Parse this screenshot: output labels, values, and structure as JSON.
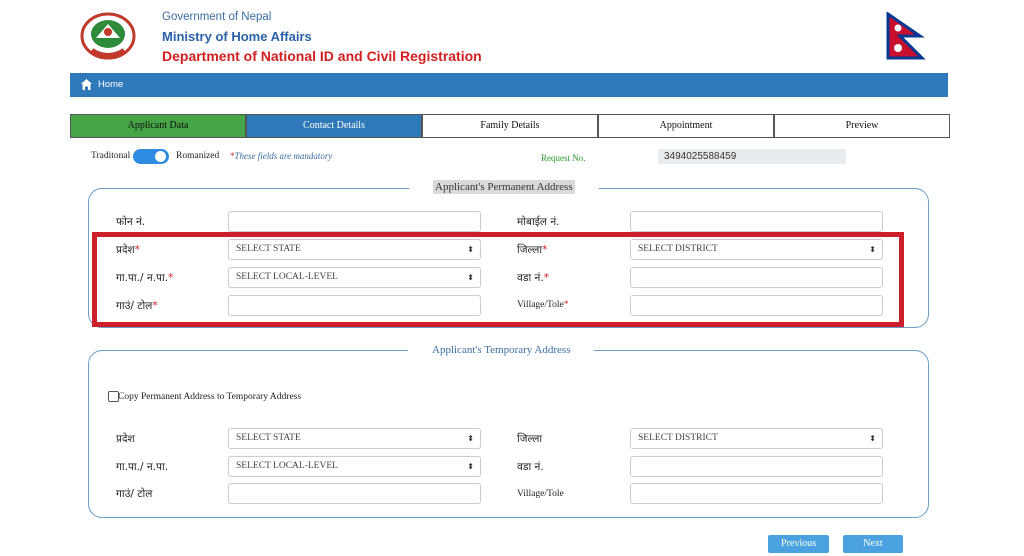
{
  "header": {
    "gov_name": "Government of Nepal",
    "ministry": "Ministry of Home Affairs",
    "department": "Department of National ID and Civil Registration"
  },
  "nav": {
    "home_label": "Home"
  },
  "tabs": [
    {
      "label": "Applicant Data",
      "state": "done"
    },
    {
      "label": "Contact Details",
      "state": "active"
    },
    {
      "label": "Family Details",
      "state": "normal"
    },
    {
      "label": "Appointment",
      "state": "normal"
    },
    {
      "label": "Preview",
      "state": "normal"
    }
  ],
  "toggle": {
    "left_label": "Traditonal",
    "right_label": "Romanized",
    "state": "on"
  },
  "mandatory_note": "These fields are mandatory",
  "request": {
    "label": "Request No.",
    "value": "3494025588459"
  },
  "permanent": {
    "legend": "Applicant's Permanent Address",
    "phone_label": "फोन नं.",
    "mobile_label": "मोबाईल नं.",
    "state_label": "प्रदेश",
    "state_value": "SELECT STATE",
    "district_label": "जिल्ला",
    "district_value": "SELECT DISTRICT",
    "local_label": "गा.पा./ न.पा.",
    "local_value": "SELECT LOCAL-LEVEL",
    "ward_label": "वडा नं.",
    "tole_label": "गाउं/ टोल",
    "village_label": "Village/Tole"
  },
  "temporary": {
    "legend": "Applicant's Temporary Address",
    "copy_label": "Copy Permanent Address to Temporary Address",
    "state_label": "प्रदेश",
    "state_value": "SELECT STATE",
    "district_label": "जिल्ला",
    "district_value": "SELECT DISTRICT",
    "local_label": "गा.पा./ न.पा.",
    "local_value": "SELECT LOCAL-LEVEL",
    "ward_label": "वडा नं.",
    "tole_label": "गाउं/ टोल",
    "village_label": "Village/Tole"
  },
  "buttons": {
    "previous": "Previous",
    "next": "Next"
  },
  "colors": {
    "nav_blue": "#2f78b9",
    "done_green": "#46a546",
    "highlight_red": "#cc1f2b",
    "required_red": "#d21f1f",
    "button_blue": "#4aa3e0"
  }
}
